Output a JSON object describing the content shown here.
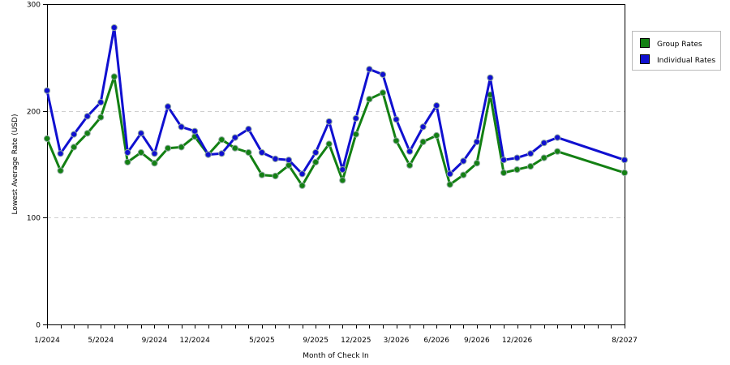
{
  "chart_data": {
    "type": "line",
    "title": "",
    "xlabel": "Month of Check In",
    "ylabel": "Lowest Average Rate (USD)",
    "ylim": [
      0,
      300
    ],
    "yticks": [
      0,
      100,
      200,
      300
    ],
    "grid": true,
    "legend_position": "top-right",
    "x": [
      "1/2024",
      "2/2024",
      "3/2024",
      "4/2024",
      "5/2024",
      "6/2024",
      "7/2024",
      "8/2024",
      "9/2024",
      "10/2024",
      "11/2024",
      "12/2024",
      "1/2025",
      "2/2025",
      "3/2025",
      "4/2025",
      "5/2025",
      "6/2025",
      "7/2025",
      "8/2025",
      "9/2025",
      "10/2025",
      "11/2025",
      "12/2025",
      "1/2026",
      "2/2026",
      "3/2026",
      "4/2026",
      "5/2026",
      "6/2026",
      "7/2026",
      "8/2026",
      "9/2026",
      "10/2026",
      "11/2026",
      "12/2026",
      "1/2027",
      "2/2027",
      "3/2027",
      "4/2027",
      "5/2027",
      "6/2027",
      "7/2027",
      "8/2027"
    ],
    "x_tick_labels": [
      "1/2024",
      "5/2024",
      "9/2024",
      "12/2024",
      "5/2025",
      "9/2025",
      "12/2025",
      "3/2026",
      "6/2026",
      "9/2026",
      "12/2026",
      "8/2027"
    ],
    "series": [
      {
        "name": "Group Rates",
        "color": "#138013",
        "x": [
          "1/2024",
          "2/2024",
          "3/2024",
          "4/2024",
          "5/2024",
          "6/2024",
          "7/2024",
          "8/2024",
          "9/2024",
          "10/2024",
          "11/2024",
          "12/2024",
          "1/2025",
          "2/2025",
          "3/2025",
          "4/2025",
          "5/2025",
          "6/2025",
          "7/2025",
          "8/2025",
          "9/2025",
          "10/2025",
          "11/2025",
          "12/2025",
          "1/2026",
          "2/2026",
          "3/2026",
          "4/2026",
          "5/2026",
          "6/2026",
          "7/2026",
          "8/2026",
          "9/2026",
          "10/2026",
          "11/2026",
          "12/2026",
          "1/2027",
          "2/2027",
          "3/2027",
          "8/2027"
        ],
        "values": [
          174,
          144,
          166,
          179,
          194,
          232,
          152,
          161,
          151,
          165,
          166,
          176,
          159,
          173,
          165,
          161,
          140,
          139,
          149,
          130,
          152,
          169,
          135,
          178,
          211,
          217,
          172,
          149,
          171,
          177,
          131,
          140,
          151,
          215,
          142,
          145,
          148,
          156,
          162,
          142
        ]
      },
      {
        "name": "Individual Rates",
        "color": "#1010d0",
        "x": [
          "1/2024",
          "2/2024",
          "3/2024",
          "4/2024",
          "5/2024",
          "6/2024",
          "7/2024",
          "8/2024",
          "9/2024",
          "10/2024",
          "11/2024",
          "12/2024",
          "1/2025",
          "2/2025",
          "3/2025",
          "4/2025",
          "5/2025",
          "6/2025",
          "7/2025",
          "8/2025",
          "9/2025",
          "10/2025",
          "11/2025",
          "12/2025",
          "1/2026",
          "2/2026",
          "3/2026",
          "4/2026",
          "5/2026",
          "6/2026",
          "7/2026",
          "8/2026",
          "9/2026",
          "10/2026",
          "11/2026",
          "12/2026",
          "1/2027",
          "2/2027",
          "3/2027",
          "8/2027"
        ],
        "values": [
          219,
          160,
          178,
          195,
          208,
          278,
          161,
          179,
          160,
          204,
          185,
          181,
          159,
          160,
          175,
          183,
          161,
          155,
          154,
          141,
          161,
          190,
          145,
          193,
          239,
          234,
          192,
          162,
          185,
          205,
          141,
          153,
          171,
          231,
          154,
          156,
          160,
          170,
          175,
          154
        ]
      }
    ]
  }
}
